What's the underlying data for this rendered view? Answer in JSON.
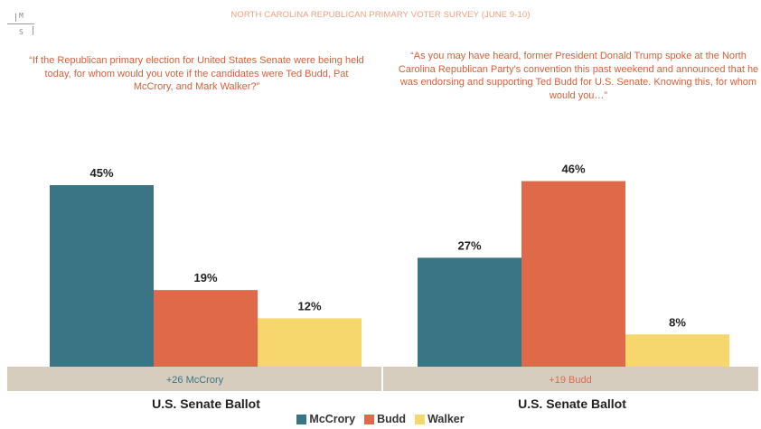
{
  "header": {
    "logo_top": "M",
    "logo_bottom": "S",
    "title": "NORTH CAROLINA REPUBLICAN PRIMARY VOTER SURVEY (JUNE 9-10)"
  },
  "questions": [
    "“If the Republican primary election for United States Senate were being held today, for whom would you vote if the candidates were Ted Budd, Pat McCrory, and Mark Walker?”",
    "“As you may have heard, former President Donald Trump spoke at the North Carolina Republican Party's convention this past weekend and announced that he was endorsing and supporting Ted Budd for U.S. Senate. Knowing this, for whom would you…”"
  ],
  "colors": {
    "McCrory": "#3a7585",
    "Budd": "#e0694a",
    "Walker": "#f5d76e",
    "band": "#d7cdbf",
    "band_text_1": "#3a7585",
    "band_text_2": "#e0694a"
  },
  "chart_data": [
    {
      "type": "bar",
      "title": "U.S. Senate Ballot",
      "categories": [
        "McCrory",
        "Budd",
        "Walker"
      ],
      "values": [
        45,
        19,
        12
      ],
      "labels": [
        "45%",
        "19%",
        "12%"
      ],
      "margin_label": "+26 McCrory",
      "ylim": [
        0,
        50
      ]
    },
    {
      "type": "bar",
      "title": "U.S. Senate Ballot",
      "categories": [
        "McCrory",
        "Budd",
        "Walker"
      ],
      "values": [
        27,
        46,
        8
      ],
      "labels": [
        "27%",
        "46%",
        "8%"
      ],
      "margin_label": "+19 Budd",
      "ylim": [
        0,
        50
      ]
    }
  ],
  "legend": [
    {
      "name": "McCrory",
      "color": "#3a7585"
    },
    {
      "name": "Budd",
      "color": "#e0694a"
    },
    {
      "name": "Walker",
      "color": "#f5d76e"
    }
  ]
}
